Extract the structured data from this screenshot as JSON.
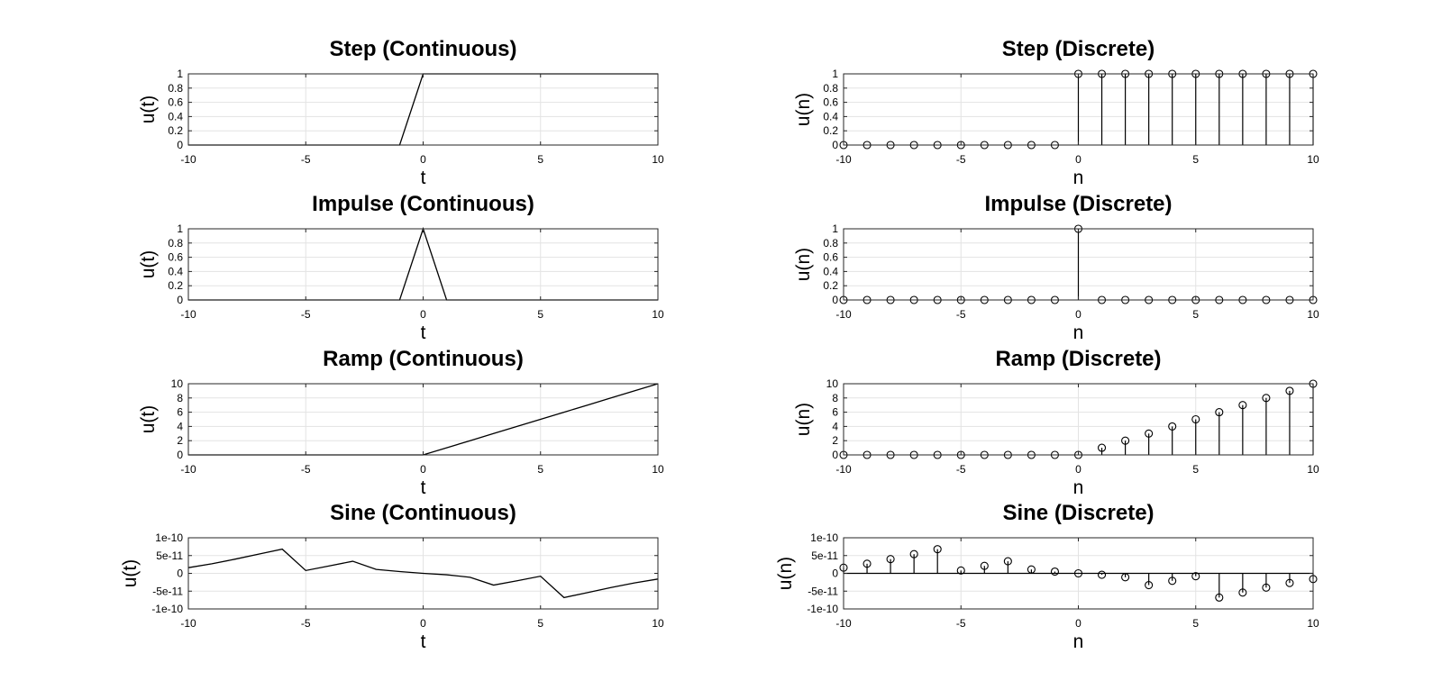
{
  "chart_data": [
    {
      "type": "line",
      "title": "Step (Continuous)",
      "xlabel": "t",
      "ylabel": "u(t)",
      "xlim": [
        -10,
        10
      ],
      "ylim": [
        0,
        1
      ],
      "xticks": [
        -10,
        -5,
        0,
        5,
        10
      ],
      "xtick_labels": [
        "-10",
        "-5",
        "0",
        "5",
        "10"
      ],
      "yticks": [
        0,
        0.2,
        0.4,
        0.6,
        0.8,
        1
      ],
      "ytick_labels": [
        "0",
        "0.2",
        "0.4",
        "0.6",
        "0.8",
        "1"
      ],
      "grid": true,
      "series": [
        {
          "x": [
            -10,
            -9,
            -8,
            -7,
            -6,
            -5,
            -4,
            -3,
            -2,
            -1,
            0,
            1,
            2,
            3,
            4,
            5,
            6,
            7,
            8,
            9,
            10
          ],
          "y": [
            0,
            0,
            0,
            0,
            0,
            0,
            0,
            0,
            0,
            0,
            1,
            1,
            1,
            1,
            1,
            1,
            1,
            1,
            1,
            1,
            1
          ]
        }
      ]
    },
    {
      "type": "stem",
      "title": "Step (Discrete)",
      "xlabel": "n",
      "ylabel": "u(n)",
      "xlim": [
        -10,
        10
      ],
      "ylim": [
        0,
        1
      ],
      "xticks": [
        -10,
        -5,
        0,
        5,
        10
      ],
      "xtick_labels": [
        "-10",
        "-5",
        "0",
        "5",
        "10"
      ],
      "yticks": [
        0,
        0.2,
        0.4,
        0.6,
        0.8,
        1
      ],
      "ytick_labels": [
        "0",
        "0.2",
        "0.4",
        "0.6",
        "0.8",
        "1"
      ],
      "grid": true,
      "series": [
        {
          "x": [
            -10,
            -9,
            -8,
            -7,
            -6,
            -5,
            -4,
            -3,
            -2,
            -1,
            0,
            1,
            2,
            3,
            4,
            5,
            6,
            7,
            8,
            9,
            10
          ],
          "y": [
            0,
            0,
            0,
            0,
            0,
            0,
            0,
            0,
            0,
            0,
            1,
            1,
            1,
            1,
            1,
            1,
            1,
            1,
            1,
            1,
            1
          ]
        }
      ]
    },
    {
      "type": "line",
      "title": "Impulse (Continuous)",
      "xlabel": "t",
      "ylabel": "u(t)",
      "xlim": [
        -10,
        10
      ],
      "ylim": [
        0,
        1
      ],
      "xticks": [
        -10,
        -5,
        0,
        5,
        10
      ],
      "xtick_labels": [
        "-10",
        "-5",
        "0",
        "5",
        "10"
      ],
      "yticks": [
        0,
        0.2,
        0.4,
        0.6,
        0.8,
        1
      ],
      "ytick_labels": [
        "0",
        "0.2",
        "0.4",
        "0.6",
        "0.8",
        "1"
      ],
      "grid": true,
      "series": [
        {
          "x": [
            -10,
            -9,
            -8,
            -7,
            -6,
            -5,
            -4,
            -3,
            -2,
            -1,
            0,
            1,
            2,
            3,
            4,
            5,
            6,
            7,
            8,
            9,
            10
          ],
          "y": [
            0,
            0,
            0,
            0,
            0,
            0,
            0,
            0,
            0,
            0,
            1,
            0,
            0,
            0,
            0,
            0,
            0,
            0,
            0,
            0,
            0
          ]
        }
      ]
    },
    {
      "type": "stem",
      "title": "Impulse (Discrete)",
      "xlabel": "n",
      "ylabel": "u(n)",
      "xlim": [
        -10,
        10
      ],
      "ylim": [
        0,
        1
      ],
      "xticks": [
        -10,
        -5,
        0,
        5,
        10
      ],
      "xtick_labels": [
        "-10",
        "-5",
        "0",
        "5",
        "10"
      ],
      "yticks": [
        0,
        0.2,
        0.4,
        0.6,
        0.8,
        1
      ],
      "ytick_labels": [
        "0",
        "0.2",
        "0.4",
        "0.6",
        "0.8",
        "1"
      ],
      "grid": true,
      "series": [
        {
          "x": [
            -10,
            -9,
            -8,
            -7,
            -6,
            -5,
            -4,
            -3,
            -2,
            -1,
            0,
            1,
            2,
            3,
            4,
            5,
            6,
            7,
            8,
            9,
            10
          ],
          "y": [
            0,
            0,
            0,
            0,
            0,
            0,
            0,
            0,
            0,
            0,
            1,
            0,
            0,
            0,
            0,
            0,
            0,
            0,
            0,
            0,
            0
          ]
        }
      ]
    },
    {
      "type": "line",
      "title": "Ramp (Continuous)",
      "xlabel": "t",
      "ylabel": "u(t)",
      "xlim": [
        -10,
        10
      ],
      "ylim": [
        0,
        10
      ],
      "xticks": [
        -10,
        -5,
        0,
        5,
        10
      ],
      "xtick_labels": [
        "-10",
        "-5",
        "0",
        "5",
        "10"
      ],
      "yticks": [
        0,
        2,
        4,
        6,
        8,
        10
      ],
      "ytick_labels": [
        "0",
        "2",
        "4",
        "6",
        "8",
        "10"
      ],
      "grid": true,
      "series": [
        {
          "x": [
            -10,
            -9,
            -8,
            -7,
            -6,
            -5,
            -4,
            -3,
            -2,
            -1,
            0,
            1,
            2,
            3,
            4,
            5,
            6,
            7,
            8,
            9,
            10
          ],
          "y": [
            0,
            0,
            0,
            0,
            0,
            0,
            0,
            0,
            0,
            0,
            0,
            1,
            2,
            3,
            4,
            5,
            6,
            7,
            8,
            9,
            10
          ]
        }
      ]
    },
    {
      "type": "stem",
      "title": "Ramp (Discrete)",
      "xlabel": "n",
      "ylabel": "u(n)",
      "xlim": [
        -10,
        10
      ],
      "ylim": [
        0,
        10
      ],
      "xticks": [
        -10,
        -5,
        0,
        5,
        10
      ],
      "xtick_labels": [
        "-10",
        "-5",
        "0",
        "5",
        "10"
      ],
      "yticks": [
        0,
        2,
        4,
        6,
        8,
        10
      ],
      "ytick_labels": [
        "0",
        "2",
        "4",
        "6",
        "8",
        "10"
      ],
      "grid": true,
      "series": [
        {
          "x": [
            -10,
            -9,
            -8,
            -7,
            -6,
            -5,
            -4,
            -3,
            -2,
            -1,
            0,
            1,
            2,
            3,
            4,
            5,
            6,
            7,
            8,
            9,
            10
          ],
          "y": [
            0,
            0,
            0,
            0,
            0,
            0,
            0,
            0,
            0,
            0,
            0,
            1,
            2,
            3,
            4,
            5,
            6,
            7,
            8,
            9,
            10
          ]
        }
      ]
    },
    {
      "type": "line",
      "title": "Sine (Continuous)",
      "xlabel": "t",
      "ylabel": "u(t)",
      "xlim": [
        -10,
        10
      ],
      "ylim": [
        -1e-10,
        1e-10
      ],
      "xticks": [
        -10,
        -5,
        0,
        5,
        10
      ],
      "xtick_labels": [
        "-10",
        "-5",
        "0",
        "5",
        "10"
      ],
      "yticks": [
        -1e-10,
        -5e-11,
        0,
        5e-11,
        1e-10
      ],
      "ytick_labels": [
        "-1e-10",
        "-5e-11",
        "0",
        "5e-11",
        "1e-10"
      ],
      "grid": true,
      "series": [
        {
          "x": [
            -10,
            -9,
            -8,
            -7,
            -6,
            -5,
            -4,
            -3,
            -2,
            -1,
            0,
            1,
            2,
            3,
            4,
            5,
            6,
            7,
            8,
            9,
            10
          ],
          "y": [
            1.6e-11,
            2.7e-11,
            4e-11,
            5.4e-11,
            6.8e-11,
            8e-12,
            2.1e-11,
            3.4e-11,
            1.1e-11,
            5e-12,
            0,
            -4e-12,
            -1.1e-11,
            -3.3e-11,
            -2.1e-11,
            -8e-12,
            -6.8e-11,
            -5.4e-11,
            -4e-11,
            -2.7e-11,
            -1.6e-11
          ]
        }
      ]
    },
    {
      "type": "stem",
      "title": "Sine (Discrete)",
      "xlabel": "n",
      "ylabel": "u(n)",
      "xlim": [
        -10,
        10
      ],
      "ylim": [
        -1e-10,
        1e-10
      ],
      "xticks": [
        -10,
        -5,
        0,
        5,
        10
      ],
      "xtick_labels": [
        "-10",
        "-5",
        "0",
        "5",
        "10"
      ],
      "yticks": [
        -1e-10,
        -5e-11,
        0,
        5e-11,
        1e-10
      ],
      "ytick_labels": [
        "-1e-10",
        "-5e-11",
        "0",
        "5e-11",
        "1e-10"
      ],
      "grid": true,
      "series": [
        {
          "x": [
            -10,
            -9,
            -8,
            -7,
            -6,
            -5,
            -4,
            -3,
            -2,
            -1,
            0,
            1,
            2,
            3,
            4,
            5,
            6,
            7,
            8,
            9,
            10
          ],
          "y": [
            1.6e-11,
            2.7e-11,
            4e-11,
            5.4e-11,
            6.8e-11,
            8e-12,
            2.1e-11,
            3.4e-11,
            1.1e-11,
            5e-12,
            0,
            -4e-12,
            -1.1e-11,
            -3.3e-11,
            -2.1e-11,
            -8e-12,
            -6.8e-11,
            -5.4e-11,
            -4e-11,
            -2.7e-11,
            -1.6e-11
          ]
        }
      ]
    }
  ]
}
